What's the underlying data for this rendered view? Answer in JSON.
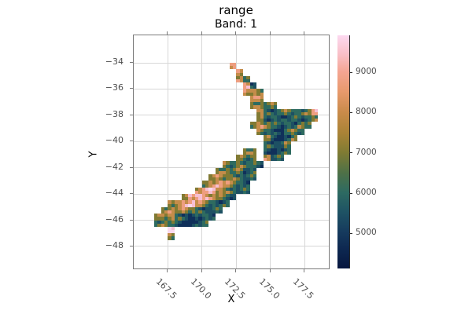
{
  "chart_data": {
    "type": "heatmap",
    "title": "range",
    "subtitle": "Band: 1",
    "xlabel": "X",
    "ylabel": "Y",
    "xlim": [
      165.0,
      179.4
    ],
    "ylim": [
      -49.8,
      -31.9
    ],
    "xticks": [
      167.5,
      170.0,
      172.5,
      175.0,
      177.5
    ],
    "xtick_labels": [
      "167.5",
      "170.0",
      "172.5",
      "175.0",
      "177.5"
    ],
    "yticks": [
      -34,
      -36,
      -38,
      -40,
      -42,
      -44,
      -46,
      -48
    ],
    "ytick_labels": [
      "−34",
      "−36",
      "−38",
      "−40",
      "−42",
      "−44",
      "−46",
      "−48"
    ],
    "grid": true,
    "gridline_color": "#d7d7d7",
    "spine_color": "#7a7a7a",
    "tick_color": "#7a7a7a",
    "tick_label_color": "#4d4d4d",
    "colorbar": {
      "vmin": 4120,
      "vmax": 9910,
      "ticks": [
        5000,
        6000,
        7000,
        8000,
        9000
      ],
      "tick_labels": [
        "5000",
        "6000",
        "7000",
        "8000",
        "9000"
      ],
      "gradient": [
        {
          "at": 0.0,
          "color": "#07173f"
        },
        {
          "at": 0.08,
          "color": "#0d2750"
        },
        {
          "at": 0.152,
          "color": "#15395d"
        },
        {
          "at": 0.24,
          "color": "#1e5264"
        },
        {
          "at": 0.325,
          "color": "#2d6a62"
        },
        {
          "at": 0.41,
          "color": "#4e7147"
        },
        {
          "at": 0.497,
          "color": "#7f7b33"
        },
        {
          "at": 0.58,
          "color": "#a98336"
        },
        {
          "at": 0.67,
          "color": "#c98b4a"
        },
        {
          "at": 0.76,
          "color": "#e89a6d"
        },
        {
          "at": 0.843,
          "color": "#f4a592"
        },
        {
          "at": 0.92,
          "color": "#f9c0c8"
        },
        {
          "at": 1.0,
          "color": "#fcd9f0"
        }
      ]
    },
    "raster": {
      "description": "Coarse 0.5-degree recreation of the New Zealand raster; digits index the palette from low/dark (1) to high/pink (8), dots are no-data.",
      "lon0": 165.0,
      "lat0": -32.0,
      "cell_deg": 0.5,
      "palette": [
        "#10305a",
        "#1d5063",
        "#2e6b60",
        "#817a33",
        "#c48c4a",
        "#ee9e80",
        "#f6bfd3",
        "#fad9ee"
      ],
      "rows": [
        ".............................",
        ".............................",
        ".............................",
        ".............................",
        "..............6..............",
        "...............5.............",
        "...............53............",
        "................62...........",
        "................554..........",
        ".................55..........",
        ".................4434........",
        "..................532343346..",
        "..................423223234..",
        ".................454323243...",
        "..................4321343....",
        "...................42124.....",
        "...................3224......",
        "................44.2123......",
        "...............434.523.......",
        ".............434332..........",
        "............443423...........",
        "...........4544323...........",
        "..........4565432............",
        ".........56754323............",
        ".......46765432..............",
        ".....456754323...............",
        "....454543223................",
        "...445321232.................",
        "...34321123..................",
        ".....8.......................",
        ".....4.......................",
        ".............................",
        ".............................",
        ".............................",
        ".............................",
        "............................."
      ]
    }
  }
}
